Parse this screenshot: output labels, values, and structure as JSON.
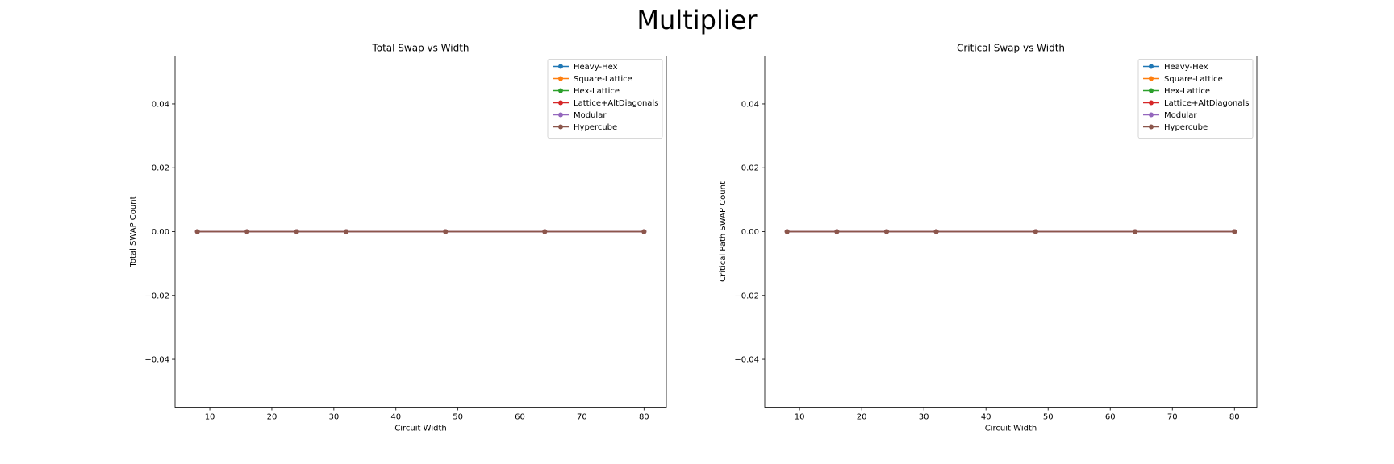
{
  "figure": {
    "title": "Multiplier"
  },
  "chart_data": [
    {
      "type": "line",
      "title": "Total Swap vs Width",
      "xlabel": "Circuit Width",
      "ylabel": "Total SWAP Count",
      "x": [
        8,
        16,
        24,
        32,
        48,
        64,
        80
      ],
      "xlim": [
        4.4,
        83.6
      ],
      "ylim": [
        -0.055,
        0.055
      ],
      "xticks": [
        10,
        20,
        30,
        40,
        50,
        60,
        70,
        80
      ],
      "yticks": [
        -0.04,
        -0.02,
        0.0,
        0.02,
        0.04
      ],
      "ytick_labels": [
        "−0.04",
        "−0.02",
        "0.00",
        "0.02",
        "0.04"
      ],
      "legend_position": "upper right",
      "grid": false,
      "series": [
        {
          "name": "Heavy-Hex",
          "color": "#1f77b4",
          "values": [
            0,
            0,
            0,
            0,
            0,
            0,
            0
          ]
        },
        {
          "name": "Square-Lattice",
          "color": "#ff7f0e",
          "values": [
            0,
            0,
            0,
            0,
            0,
            0,
            0
          ]
        },
        {
          "name": "Hex-Lattice",
          "color": "#2ca02c",
          "values": [
            0,
            0,
            0,
            0,
            0,
            0,
            0
          ]
        },
        {
          "name": "Lattice+AltDiagonals",
          "color": "#d62728",
          "values": [
            0,
            0,
            0,
            0,
            0,
            0,
            0
          ]
        },
        {
          "name": "Modular",
          "color": "#9467bd",
          "values": [
            0,
            0,
            0,
            0,
            0,
            0,
            0
          ]
        },
        {
          "name": "Hypercube",
          "color": "#8c564b",
          "values": [
            0,
            0,
            0,
            0,
            0,
            0,
            0
          ]
        }
      ]
    },
    {
      "type": "line",
      "title": "Critical Swap vs Width",
      "xlabel": "Circuit Width",
      "ylabel": "Critical Path SWAP Count",
      "x": [
        8,
        16,
        24,
        32,
        48,
        64,
        80
      ],
      "xlim": [
        4.4,
        83.6
      ],
      "ylim": [
        -0.055,
        0.055
      ],
      "xticks": [
        10,
        20,
        30,
        40,
        50,
        60,
        70,
        80
      ],
      "yticks": [
        -0.04,
        -0.02,
        0.0,
        0.02,
        0.04
      ],
      "ytick_labels": [
        "−0.04",
        "−0.02",
        "0.00",
        "0.02",
        "0.04"
      ],
      "legend_position": "upper right",
      "grid": false,
      "series": [
        {
          "name": "Heavy-Hex",
          "color": "#1f77b4",
          "values": [
            0,
            0,
            0,
            0,
            0,
            0,
            0
          ]
        },
        {
          "name": "Square-Lattice",
          "color": "#ff7f0e",
          "values": [
            0,
            0,
            0,
            0,
            0,
            0,
            0
          ]
        },
        {
          "name": "Hex-Lattice",
          "color": "#2ca02c",
          "values": [
            0,
            0,
            0,
            0,
            0,
            0,
            0
          ]
        },
        {
          "name": "Lattice+AltDiagonals",
          "color": "#d62728",
          "values": [
            0,
            0,
            0,
            0,
            0,
            0,
            0
          ]
        },
        {
          "name": "Modular",
          "color": "#9467bd",
          "values": [
            0,
            0,
            0,
            0,
            0,
            0,
            0
          ]
        },
        {
          "name": "Hypercube",
          "color": "#8c564b",
          "values": [
            0,
            0,
            0,
            0,
            0,
            0,
            0
          ]
        }
      ]
    }
  ]
}
